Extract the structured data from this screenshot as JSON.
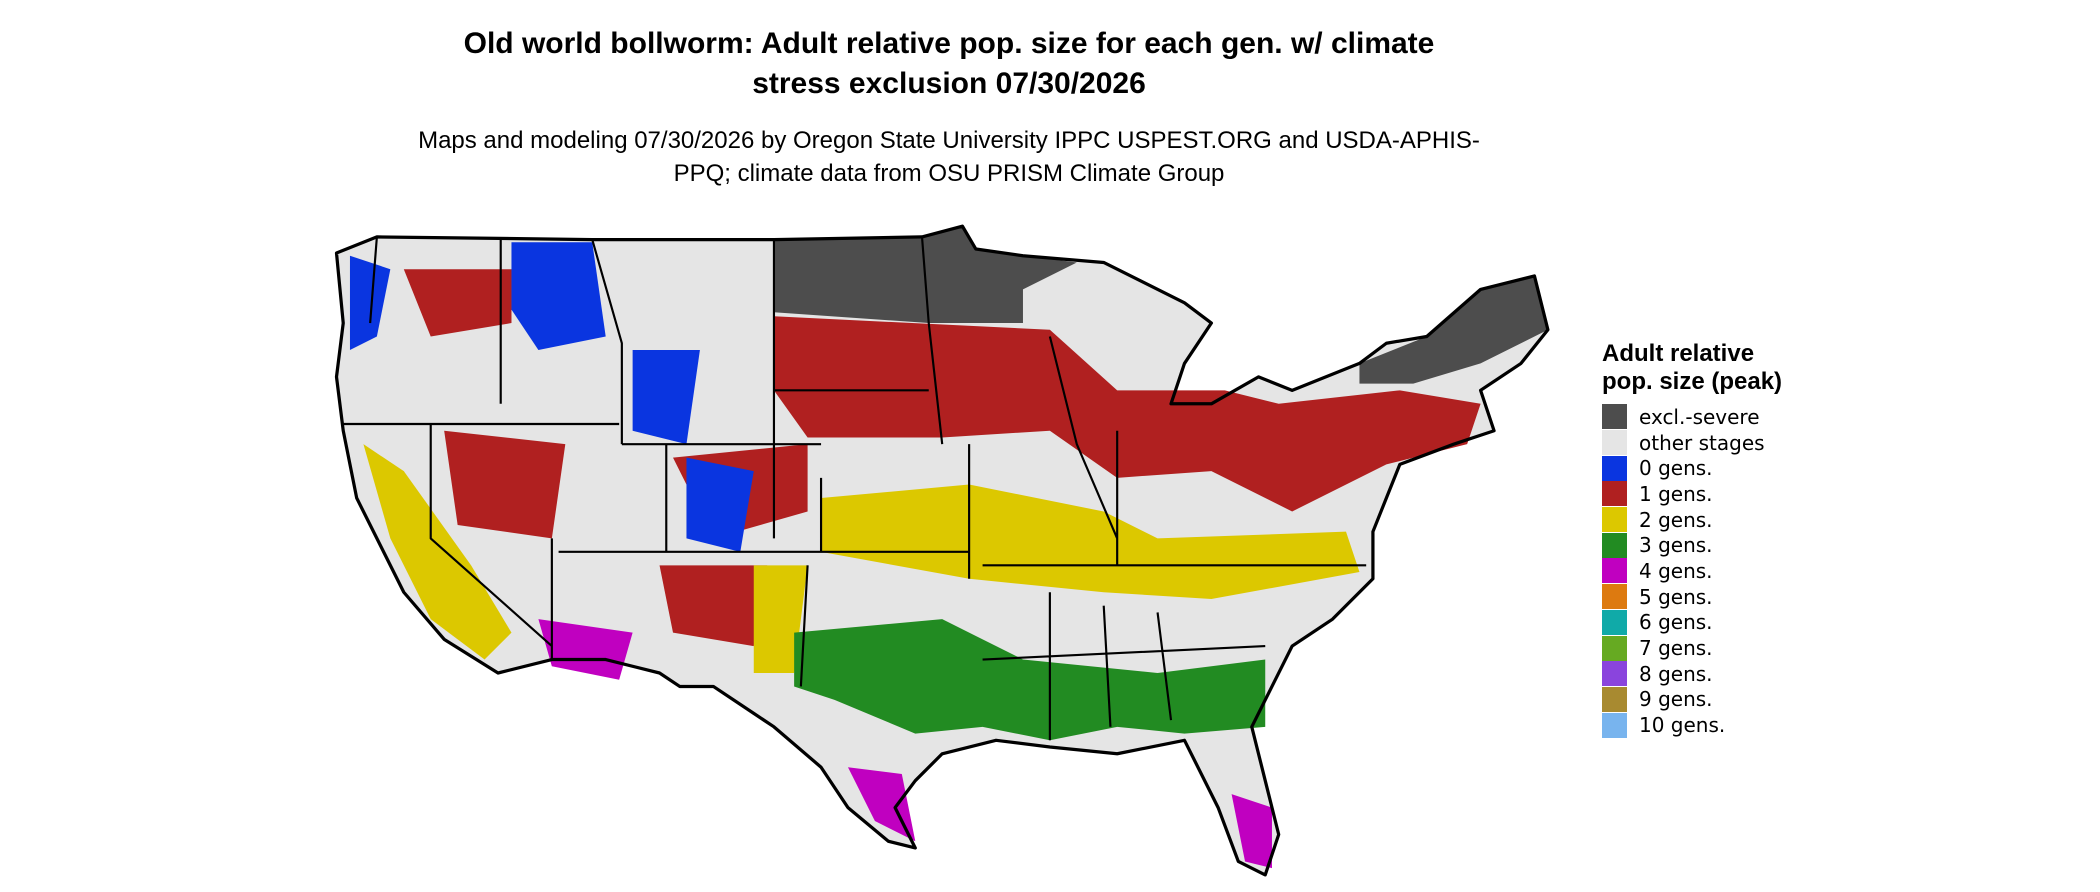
{
  "title": "Old world bollworm: Adult relative pop. size for each gen. w/ climate stress exclusion 07/30/2026",
  "subtitle": "Maps and modeling 07/30/2026 by Oregon State University IPPC USPEST.ORG and USDA-APHIS-PPQ; climate data from OSU PRISM Climate Group",
  "legend": {
    "title": "Adult relative pop. size (peak)",
    "items": [
      {
        "label": "excl.-severe",
        "color": "#4d4d4d"
      },
      {
        "label": "other stages",
        "color": "#e5e5e5"
      },
      {
        "label": "0 gens.",
        "color": "#0a35e0"
      },
      {
        "label": "1 gens.",
        "color": "#b02020"
      },
      {
        "label": "2 gens.",
        "color": "#dcc800"
      },
      {
        "label": "3 gens.",
        "color": "#228b22"
      },
      {
        "label": "4 gens.",
        "color": "#c000c0"
      },
      {
        "label": "5 gens.",
        "color": "#dd7a10"
      },
      {
        "label": "6 gens.",
        "color": "#10aaa8"
      },
      {
        "label": "7 gens.",
        "color": "#66aa22"
      },
      {
        "label": "8 gens.",
        "color": "#8a44dd"
      },
      {
        "label": "9 gens.",
        "color": "#a88a30"
      },
      {
        "label": "10 gens.",
        "color": "#78b4ee"
      }
    ]
  }
}
